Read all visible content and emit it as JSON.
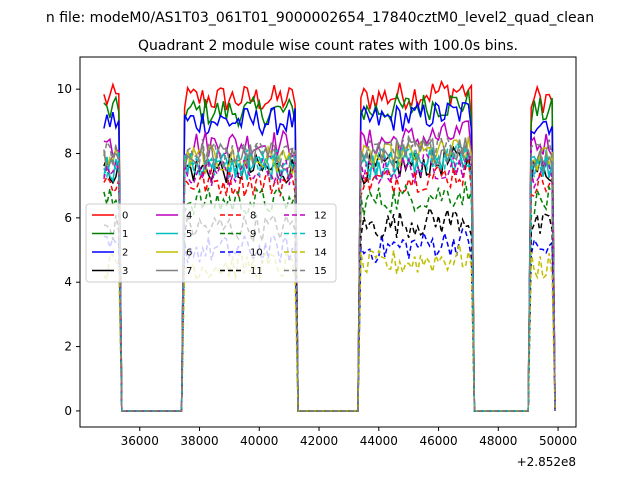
{
  "chart_data": {
    "type": "line",
    "suptitle": "n file: modeM0/AS1T03_061T01_9000002654_17840cztM0_level2_quad_clean",
    "title": "Quadrant 2 module wise count rates with 100.0s bins.",
    "xlabel": "",
    "ylabel": "",
    "x_offset_label": "+2.852e8",
    "xlim": [
      34000,
      50600
    ],
    "ylim": [
      -0.5,
      11.0
    ],
    "x_ticks": [
      36000,
      38000,
      40000,
      42000,
      44000,
      46000,
      48000,
      50000
    ],
    "x_tick_labels": [
      "36000",
      "38000",
      "40000",
      "42000",
      "44000",
      "46000",
      "48000",
      "50000"
    ],
    "y_ticks": [
      0,
      2,
      4,
      6,
      8,
      10
    ],
    "y_tick_labels": [
      "0",
      "2",
      "4",
      "6",
      "8",
      "10"
    ],
    "grid": false,
    "legend_placement": "center-left",
    "legend_columns": 4,
    "on_segments": [
      [
        34800,
        35300
      ],
      [
        37500,
        41200
      ],
      [
        43400,
        47100
      ],
      [
        49100,
        49800
      ]
    ],
    "series": [
      {
        "name": "0",
        "color": "#ff0000",
        "dash": "solid",
        "level": 9.7
      },
      {
        "name": "1",
        "color": "#008000",
        "dash": "solid",
        "level": 9.3
      },
      {
        "name": "2",
        "color": "#0000ff",
        "dash": "solid",
        "level": 9.0
      },
      {
        "name": "3",
        "color": "#000000",
        "dash": "solid",
        "level": 7.5
      },
      {
        "name": "4",
        "color": "#bf00bf",
        "dash": "solid",
        "level": 8.3
      },
      {
        "name": "5",
        "color": "#00bfbf",
        "dash": "solid",
        "level": 7.6
      },
      {
        "name": "6",
        "color": "#bfbf00",
        "dash": "solid",
        "level": 7.8
      },
      {
        "name": "7",
        "color": "#808080",
        "dash": "solid",
        "level": 7.9
      },
      {
        "name": "8",
        "color": "#ff0000",
        "dash": "dashed",
        "level": 7.1
      },
      {
        "name": "9",
        "color": "#008000",
        "dash": "dashed",
        "level": 6.5
      },
      {
        "name": "10",
        "color": "#0000ff",
        "dash": "dashed",
        "level": 5.0
      },
      {
        "name": "11",
        "color": "#000000",
        "dash": "dashed",
        "level": 5.7
      },
      {
        "name": "12",
        "color": "#bf00bf",
        "dash": "dashed",
        "level": 7.4
      },
      {
        "name": "13",
        "color": "#00bfbf",
        "dash": "dashed",
        "level": 7.7
      },
      {
        "name": "14",
        "color": "#bfbf00",
        "dash": "dashed",
        "level": 4.5
      },
      {
        "name": "15",
        "color": "#808080",
        "dash": "dashed",
        "level": 8.0
      }
    ]
  }
}
